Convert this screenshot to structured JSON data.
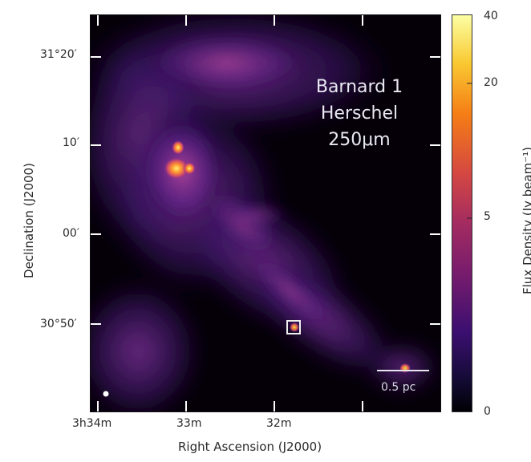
{
  "image": {
    "title_lines": [
      "Barnard 1",
      "Herschel",
      "250μm"
    ],
    "scale_bar_label": "0.5 pc",
    "x_axis_label": "Right Ascension (J2000)",
    "y_axis_label": "Declination (J2000)",
    "x_ticks": [
      "3h34m",
      "33m",
      "32m"
    ],
    "y_ticks": [
      "31°20′",
      "10′",
      "00′",
      "30°50′"
    ],
    "colorbar": {
      "label": "Flux Density (Jy beam⁻¹)",
      "ticks": [
        "40",
        "20",
        "5",
        "0"
      ]
    },
    "marker": "square-marker",
    "colors": {
      "background": "#050008",
      "low": "#2a0a52",
      "mid": "#8a2a90",
      "high": "#ff8a2a",
      "peak": "#fff27a"
    }
  }
}
